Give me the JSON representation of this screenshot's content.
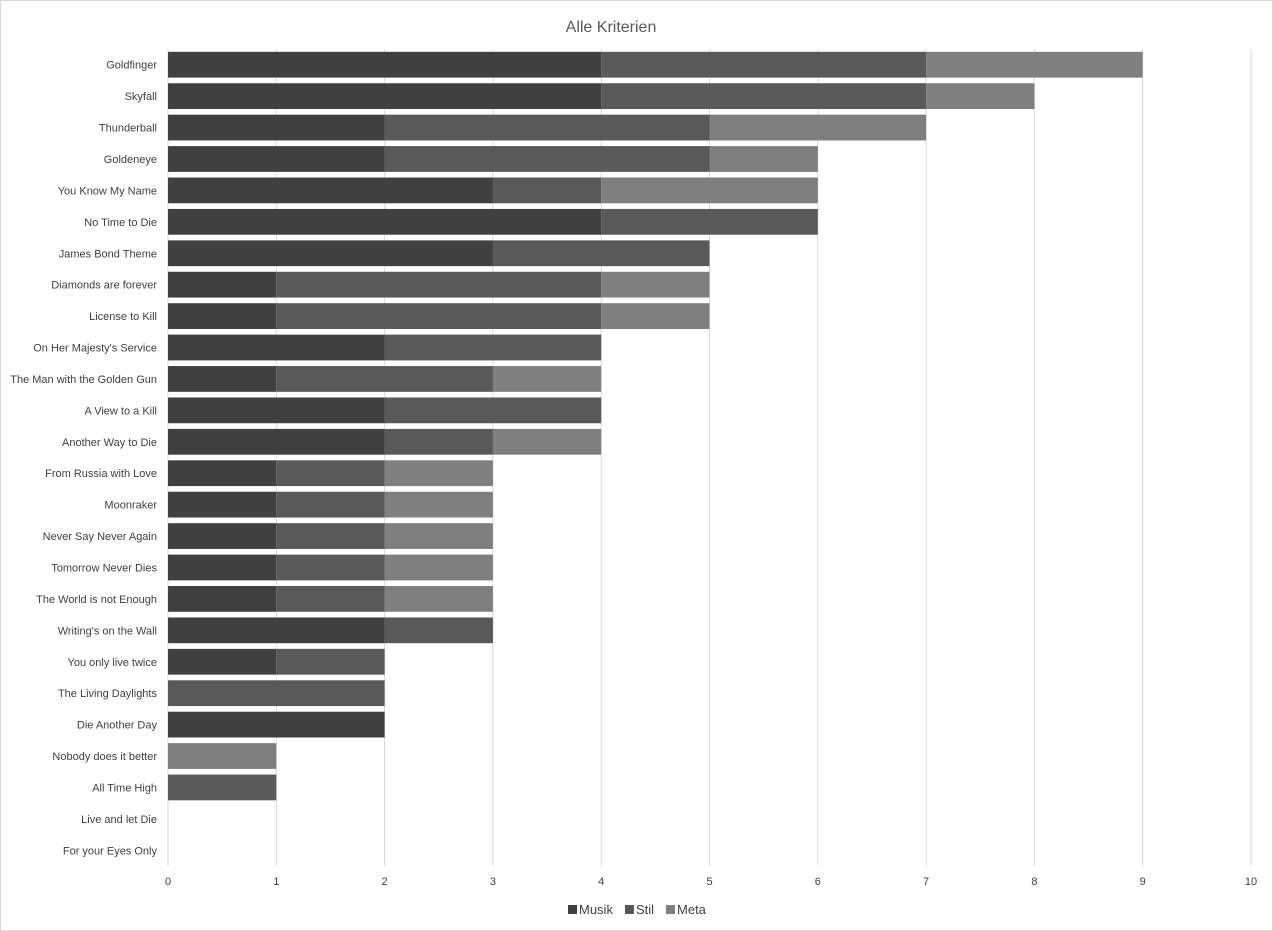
{
  "chart_data": {
    "type": "bar",
    "orientation": "horizontal",
    "stacked": true,
    "title": "Alle Kriterien",
    "xlim": [
      0,
      10
    ],
    "x_ticks": [
      "0",
      "1",
      "2",
      "3",
      "4",
      "5",
      "6",
      "7",
      "8",
      "9",
      "10"
    ],
    "grid": true,
    "legend_position": "bottom",
    "categories": [
      "Goldfinger",
      "Skyfall",
      "Thunderball",
      "Goldeneye",
      "You Know My Name",
      "No Time to Die",
      "James Bond Theme",
      "Diamonds are forever",
      "License to Kill",
      "On Her Majesty's Service",
      "The Man with the Golden Gun",
      "A View to a Kill",
      "Another Way to Die",
      "From Russia with Love",
      "Moonraker",
      "Never Say Never Again",
      "Tomorrow Never Dies",
      "The World is not Enough",
      "Writing's on the Wall",
      "You only live twice",
      "The Living Daylights",
      "Die Another Day",
      "Nobody does it better",
      "All Time High",
      "Live and let Die",
      "For your Eyes Only"
    ],
    "series": [
      {
        "name": "Musik",
        "color": "#404040",
        "values": [
          4,
          4,
          2,
          2,
          3,
          4,
          3,
          1,
          1,
          2,
          1,
          2,
          2,
          1,
          1,
          1,
          1,
          1,
          2,
          1,
          0,
          2,
          0,
          0,
          0,
          0
        ]
      },
      {
        "name": "Stil",
        "color": "#595959",
        "values": [
          3,
          3,
          3,
          3,
          1,
          2,
          2,
          3,
          3,
          2,
          2,
          2,
          1,
          1,
          1,
          1,
          1,
          1,
          1,
          1,
          2,
          0,
          0,
          1,
          0,
          0
        ]
      },
      {
        "name": "Meta",
        "color": "#7f7f7f",
        "values": [
          2,
          1,
          2,
          1,
          2,
          0,
          0,
          1,
          1,
          0,
          1,
          0,
          1,
          1,
          1,
          1,
          1,
          1,
          0,
          0,
          0,
          0,
          1,
          0,
          0,
          0
        ]
      }
    ]
  }
}
